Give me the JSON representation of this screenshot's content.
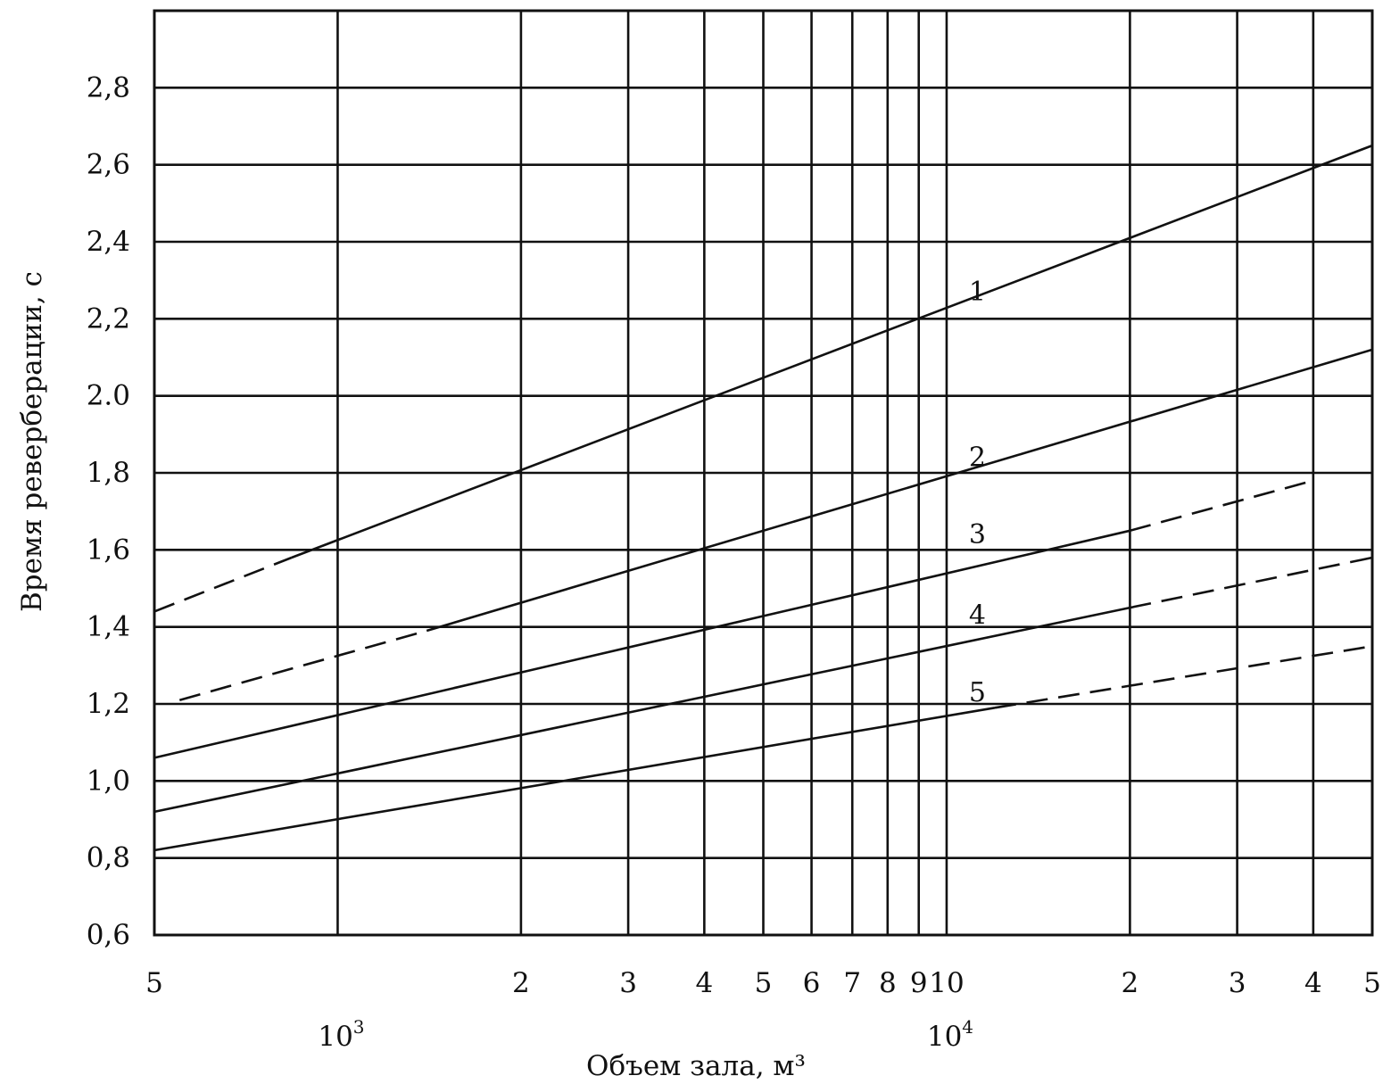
{
  "chart_data": {
    "type": "line",
    "xscale": "log",
    "xlim": [
      500,
      50000
    ],
    "ylim": [
      0.6,
      3.0
    ],
    "grid": true,
    "ylabel": "Время реверберации, с",
    "xlabel": "Объем зала, м³",
    "x_ticks": [
      {
        "value": 500,
        "label": "5"
      },
      {
        "value": 2000,
        "label": "2"
      },
      {
        "value": 3000,
        "label": "3"
      },
      {
        "value": 4000,
        "label": "4"
      },
      {
        "value": 5000,
        "label": "5"
      },
      {
        "value": 6000,
        "label": "6"
      },
      {
        "value": 7000,
        "label": "7"
      },
      {
        "value": 8000,
        "label": "8"
      },
      {
        "value": 9000,
        "label": "9"
      },
      {
        "value": 10000,
        "label": "10"
      },
      {
        "value": 20000,
        "label": "2"
      },
      {
        "value": 30000,
        "label": "3"
      },
      {
        "value": 40000,
        "label": "4"
      },
      {
        "value": 50000,
        "label": "5"
      }
    ],
    "x_gridlines": [
      1000,
      2000,
      3000,
      4000,
      5000,
      6000,
      7000,
      8000,
      9000,
      10000,
      20000,
      30000,
      40000
    ],
    "decade_labels": [
      {
        "value": 1000,
        "base": "10",
        "exp": "3"
      },
      {
        "value": 10000,
        "base": "10",
        "exp": "4"
      }
    ],
    "y_ticks": [
      {
        "value": 0.6,
        "label": "0,6"
      },
      {
        "value": 0.8,
        "label": "0,8"
      },
      {
        "value": 1.0,
        "label": "1,0"
      },
      {
        "value": 1.2,
        "label": "1,2"
      },
      {
        "value": 1.4,
        "label": "1,4"
      },
      {
        "value": 1.6,
        "label": "1,6"
      },
      {
        "value": 1.8,
        "label": "1,8"
      },
      {
        "value": 2.0,
        "label": "2.0"
      },
      {
        "value": 2.2,
        "label": "2,2"
      },
      {
        "value": 2.4,
        "label": "2,4"
      },
      {
        "value": 2.6,
        "label": "2,6"
      },
      {
        "value": 2.8,
        "label": "2,8"
      }
    ],
    "series": [
      {
        "name": "1",
        "label_at": [
          10500,
          2.27
        ],
        "solid": [
          [
            840,
            1.58
          ],
          [
            50000,
            2.65
          ]
        ],
        "dashed": [
          [
            500,
            1.44
          ],
          [
            840,
            1.58
          ]
        ]
      },
      {
        "name": "2",
        "label_at": [
          10500,
          1.84
        ],
        "solid": [
          [
            1400,
            1.39
          ],
          [
            50000,
            2.12
          ]
        ],
        "dashed": [
          [
            550,
            1.21
          ],
          [
            1400,
            1.39
          ]
        ]
      },
      {
        "name": "3",
        "label_at": [
          10500,
          1.64
        ],
        "solid": [
          [
            500,
            1.06
          ],
          [
            20000,
            1.65
          ]
        ],
        "dashed": [
          [
            20000,
            1.65
          ],
          [
            40000,
            1.78
          ]
        ]
      },
      {
        "name": "4",
        "label_at": [
          10500,
          1.43
        ],
        "solid": [
          [
            500,
            0.92
          ],
          [
            20000,
            1.45
          ]
        ],
        "dashed": [
          [
            20000,
            1.45
          ],
          [
            50000,
            1.58
          ]
        ]
      },
      {
        "name": "5",
        "label_at": [
          10500,
          1.23
        ],
        "solid": [
          [
            500,
            0.82
          ],
          [
            12000,
            1.19
          ]
        ],
        "dashed": [
          [
            12000,
            1.19
          ],
          [
            50000,
            1.35
          ]
        ]
      }
    ]
  }
}
